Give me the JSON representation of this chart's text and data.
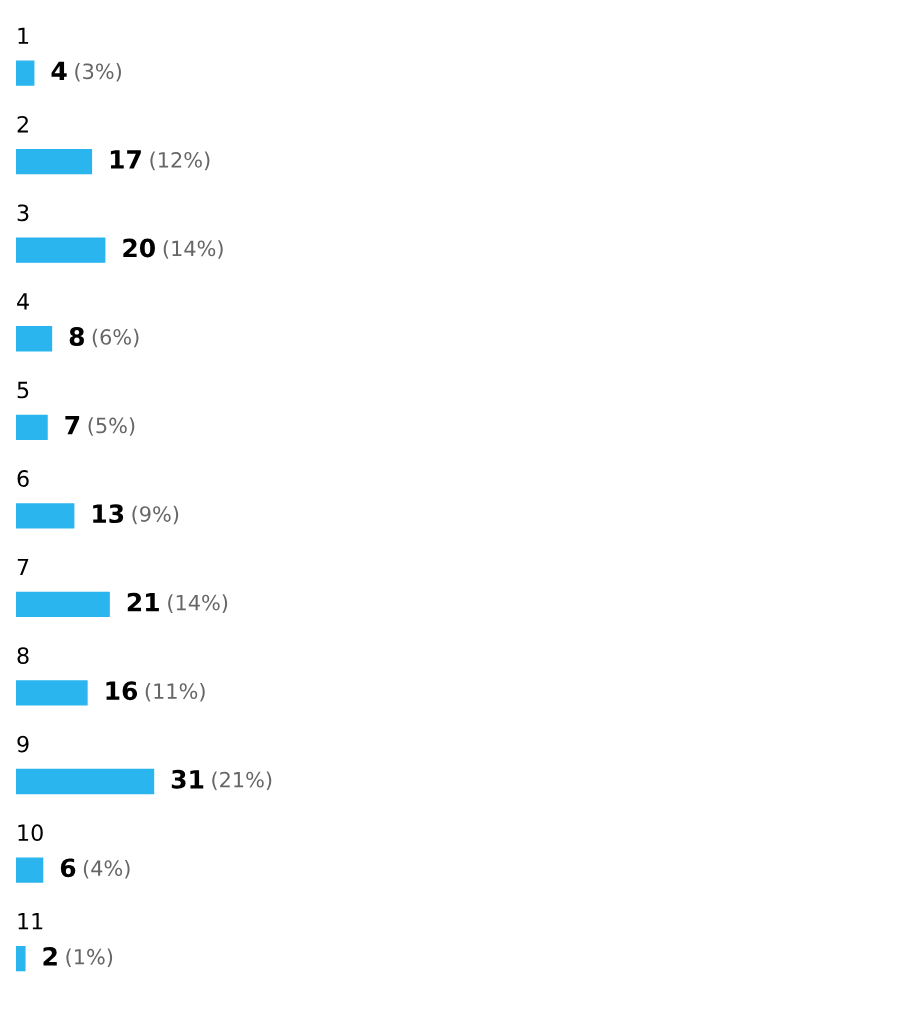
{
  "chart_data": {
    "type": "bar",
    "orientation": "horizontal",
    "categories": [
      "1",
      "2",
      "3",
      "4",
      "5",
      "6",
      "7",
      "8",
      "9",
      "10",
      "11"
    ],
    "values": [
      4,
      17,
      20,
      8,
      7,
      13,
      21,
      16,
      31,
      6,
      2
    ],
    "value_labels": [
      "4 (3%)",
      "17 (12%)",
      "20 (14%)",
      "8 (6%)",
      "7 (5%)",
      "13 (9%)",
      "21 (14%)",
      "16 (11%)",
      "31 (21%)",
      "6 (4%)",
      "2 (1%)"
    ],
    "color": "#2bb5ee"
  }
}
